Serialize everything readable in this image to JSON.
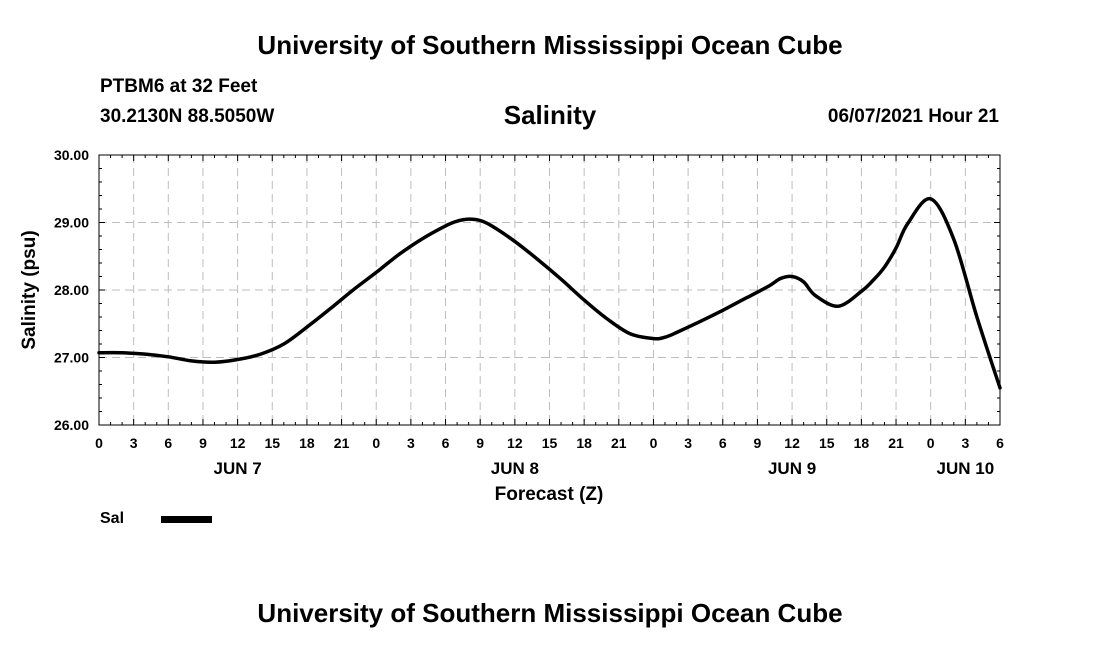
{
  "header": {
    "title": "University of Southern Mississippi Ocean Cube",
    "station": "PTBM6 at 32 Feet",
    "coords": "30.2130N  88.5050W",
    "chart_title": "Salinity",
    "timestamp": "06/07/2021 Hour 21"
  },
  "footer": {
    "title": "University of Southern Mississippi Ocean Cube"
  },
  "legend": {
    "label": "Sal",
    "color": "#000000"
  },
  "chart_data": {
    "type": "line",
    "title": "Salinity",
    "xlabel": "Forecast (Z)",
    "ylabel": "Salinity (psu)",
    "xlim": [
      0,
      78
    ],
    "ylim": [
      26,
      30
    ],
    "yticks": [
      26,
      27,
      28,
      29,
      30
    ],
    "ytick_labels": [
      "26.00",
      "27.00",
      "28.00",
      "29.00",
      "30.00"
    ],
    "xtick_hours": [
      0,
      3,
      6,
      9,
      12,
      15,
      18,
      21,
      24,
      27,
      30,
      33,
      36,
      39,
      42,
      45,
      48,
      51,
      54,
      57,
      60,
      63,
      66,
      69,
      72,
      75,
      78
    ],
    "xtick_labels": [
      "0",
      "3",
      "6",
      "9",
      "12",
      "15",
      "18",
      "21",
      "0",
      "3",
      "6",
      "9",
      "12",
      "15",
      "18",
      "21",
      "0",
      "3",
      "6",
      "9",
      "12",
      "15",
      "18",
      "21",
      "0",
      "3",
      "6"
    ],
    "date_labels": [
      {
        "hour": 12,
        "label": "JUN 7"
      },
      {
        "hour": 36,
        "label": "JUN 8"
      },
      {
        "hour": 60,
        "label": "JUN 9"
      },
      {
        "hour": 75,
        "label": "JUN 10"
      }
    ],
    "grid": true,
    "series": [
      {
        "name": "Sal",
        "x": [
          0,
          2,
          4,
          6,
          8,
          10,
          12,
          14,
          16,
          18,
          20,
          22,
          24,
          26,
          28,
          30,
          31,
          32,
          33,
          34,
          36,
          38,
          40,
          42,
          44,
          46,
          48,
          49,
          50,
          52,
          54,
          56,
          58,
          59,
          60,
          61,
          62,
          64,
          66,
          67,
          68,
          69,
          70,
          72,
          74,
          76,
          78
        ],
        "y": [
          27.07,
          27.07,
          27.05,
          27.01,
          26.95,
          26.93,
          26.97,
          27.05,
          27.2,
          27.45,
          27.72,
          28.0,
          28.26,
          28.53,
          28.76,
          28.95,
          29.02,
          29.05,
          29.03,
          28.95,
          28.72,
          28.45,
          28.16,
          27.85,
          27.57,
          27.35,
          27.28,
          27.3,
          27.37,
          27.53,
          27.7,
          27.88,
          28.06,
          28.17,
          28.2,
          28.12,
          27.92,
          27.76,
          27.98,
          28.14,
          28.34,
          28.62,
          28.98,
          29.35,
          28.75,
          27.6,
          26.55
        ]
      }
    ]
  }
}
